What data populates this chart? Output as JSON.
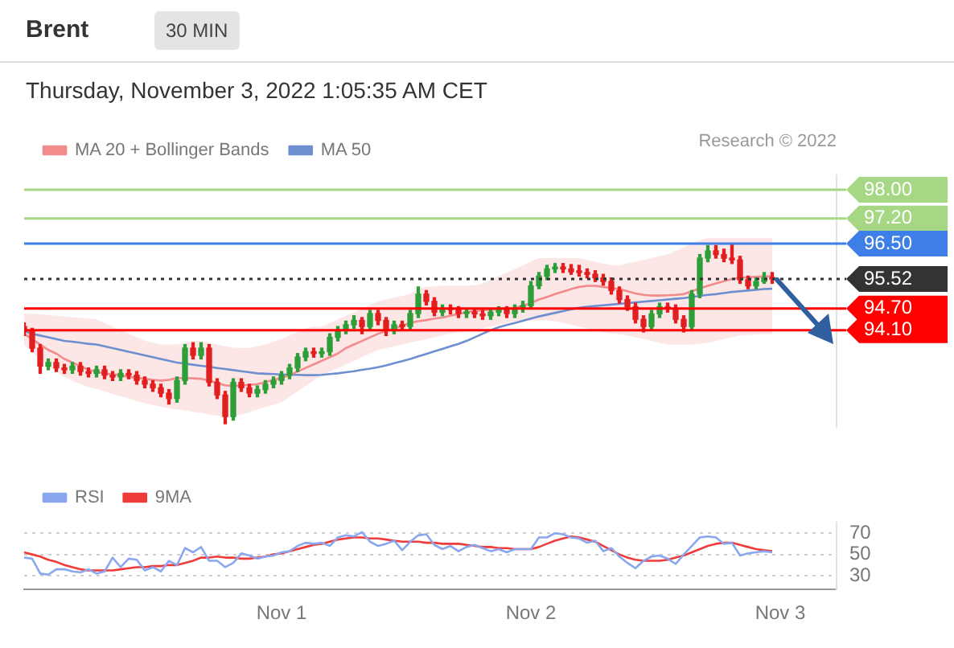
{
  "chart_data": [
    {
      "type": "candlestick",
      "title": "Brent",
      "subtitle": "Thursday, November 3, 2022 1:05:35 AM CET",
      "annotations": [
        "30 MIN",
        "Research © 2022"
      ],
      "legend": "top left",
      "tick_labels": "y",
      "ylim": [
        91.4,
        98.4
      ],
      "yticks": [
        {
          "value": 98.0,
          "label": "98.00"
        },
        {
          "value": 97.2,
          "label": "97.20"
        },
        {
          "value": 96.5,
          "label": "96.50"
        },
        95.52,
        {
          "value": 94.7,
          "label": "94.70"
        },
        {
          "value": 94.1,
          "label": "94.10"
        }
      ],
      "categories": [
        null,
        null,
        null,
        null,
        null,
        null,
        null,
        null,
        null,
        null,
        null,
        null,
        null,
        null,
        null,
        null,
        null,
        null,
        null,
        null,
        null,
        null,
        null,
        null,
        null,
        null,
        null,
        null,
        null,
        null,
        null,
        null,
        null,
        null,
        null,
        null,
        null,
        null,
        null,
        null,
        null,
        null,
        null,
        null,
        null,
        null,
        null,
        null,
        null,
        null,
        null,
        null,
        null,
        null,
        null,
        null,
        null,
        null,
        null,
        null,
        null,
        null,
        null,
        null,
        null,
        null,
        null,
        null,
        null,
        null,
        null,
        null,
        null,
        null,
        null,
        null,
        null,
        null,
        null,
        null,
        null,
        null,
        null,
        null,
        null,
        null,
        null,
        null,
        null,
        null,
        null,
        null,
        null,
        null,
        null,
        null,
        null,
        null,
        null,
        null,
        null,
        null
      ],
      "ohlc": [
        [
          94.2,
          94.3,
          93.95,
          94.07
        ],
        [
          94.07,
          94.15,
          93.5,
          93.6
        ],
        [
          93.6,
          93.7,
          92.9,
          93.1
        ],
        [
          93.1,
          93.3,
          93.0,
          93.2
        ],
        [
          93.2,
          93.3,
          92.95,
          93.05
        ],
        [
          93.05,
          93.15,
          92.9,
          93.0
        ],
        [
          93.0,
          93.2,
          92.9,
          93.1
        ],
        [
          93.1,
          93.2,
          92.85,
          92.95
        ],
        [
          92.95,
          93.05,
          92.8,
          92.9
        ],
        [
          92.9,
          93.1,
          92.8,
          93.0
        ],
        [
          93.0,
          93.1,
          92.75,
          92.85
        ],
        [
          92.85,
          92.95,
          92.7,
          92.8
        ],
        [
          92.8,
          93.0,
          92.7,
          92.9
        ],
        [
          92.9,
          93.0,
          92.75,
          92.85
        ],
        [
          92.85,
          92.95,
          92.6,
          92.7
        ],
        [
          92.7,
          92.8,
          92.5,
          92.6
        ],
        [
          92.6,
          92.7,
          92.4,
          92.5
        ],
        [
          92.5,
          92.6,
          92.25,
          92.35
        ],
        [
          92.35,
          92.45,
          92.05,
          92.2
        ],
        [
          92.2,
          92.8,
          92.1,
          92.7
        ],
        [
          92.7,
          93.7,
          92.6,
          93.6
        ],
        [
          93.6,
          93.75,
          93.3,
          93.4
        ],
        [
          93.4,
          93.75,
          93.3,
          93.6
        ],
        [
          93.6,
          93.7,
          92.55,
          92.65
        ],
        [
          92.65,
          92.75,
          92.2,
          92.3
        ],
        [
          92.3,
          92.4,
          91.5,
          91.7
        ],
        [
          91.7,
          92.75,
          91.6,
          92.65
        ],
        [
          92.65,
          92.75,
          92.4,
          92.5
        ],
        [
          92.5,
          92.6,
          92.25,
          92.35
        ],
        [
          92.35,
          92.55,
          92.25,
          92.45
        ],
        [
          92.45,
          92.7,
          92.35,
          92.6
        ],
        [
          92.6,
          92.8,
          92.5,
          92.7
        ],
        [
          92.7,
          92.95,
          92.6,
          92.85
        ],
        [
          92.85,
          93.15,
          92.75,
          93.05
        ],
        [
          93.05,
          93.45,
          92.95,
          93.35
        ],
        [
          93.35,
          93.6,
          93.25,
          93.5
        ],
        [
          93.5,
          93.6,
          93.35,
          93.45
        ],
        [
          93.45,
          93.6,
          93.35,
          93.5
        ],
        [
          93.5,
          94.0,
          93.4,
          93.9
        ],
        [
          93.9,
          94.2,
          93.8,
          94.1
        ],
        [
          94.1,
          94.35,
          94.0,
          94.25
        ],
        [
          94.25,
          94.5,
          94.15,
          94.37
        ],
        [
          94.37,
          94.45,
          94.0,
          94.2
        ],
        [
          94.2,
          94.65,
          94.1,
          94.56
        ],
        [
          94.56,
          94.65,
          94.25,
          94.37
        ],
        [
          94.37,
          94.45,
          93.95,
          94.1
        ],
        [
          94.1,
          94.35,
          94.0,
          94.25
        ],
        [
          94.25,
          94.35,
          94.1,
          94.2
        ],
        [
          94.2,
          94.65,
          94.1,
          94.56
        ],
        [
          94.56,
          95.3,
          94.45,
          95.1
        ],
        [
          95.1,
          95.2,
          94.8,
          94.9
        ],
        [
          94.9,
          95.0,
          94.5,
          94.6
        ],
        [
          94.6,
          94.8,
          94.5,
          94.7
        ],
        [
          94.7,
          94.8,
          94.55,
          94.67
        ],
        [
          94.67,
          94.75,
          94.45,
          94.56
        ],
        [
          94.56,
          94.7,
          94.45,
          94.6
        ],
        [
          94.6,
          94.7,
          94.45,
          94.55
        ],
        [
          94.55,
          94.65,
          94.4,
          94.5
        ],
        [
          94.5,
          94.7,
          94.4,
          94.6
        ],
        [
          94.6,
          94.75,
          94.5,
          94.67
        ],
        [
          94.67,
          94.75,
          94.45,
          94.56
        ],
        [
          94.56,
          94.8,
          94.45,
          94.7
        ],
        [
          94.7,
          94.9,
          94.6,
          94.78
        ],
        [
          94.78,
          95.45,
          94.7,
          95.33
        ],
        [
          95.33,
          95.7,
          95.25,
          95.6
        ],
        [
          95.6,
          95.9,
          95.5,
          95.8
        ],
        [
          95.8,
          95.95,
          95.7,
          95.85
        ],
        [
          95.85,
          95.95,
          95.7,
          95.8
        ],
        [
          95.8,
          95.92,
          95.65,
          95.72
        ],
        [
          95.72,
          95.9,
          95.6,
          95.7
        ],
        [
          95.7,
          95.8,
          95.55,
          95.65
        ],
        [
          95.65,
          95.75,
          95.45,
          95.55
        ],
        [
          95.55,
          95.65,
          95.35,
          95.45
        ],
        [
          95.45,
          95.55,
          95.1,
          95.2
        ],
        [
          95.2,
          95.3,
          94.85,
          94.95
        ],
        [
          94.95,
          95.05,
          94.65,
          94.75
        ],
        [
          94.75,
          94.85,
          94.3,
          94.4
        ],
        [
          94.4,
          94.5,
          94.05,
          94.2
        ],
        [
          94.2,
          94.65,
          94.1,
          94.55
        ],
        [
          94.55,
          94.85,
          94.45,
          94.75
        ],
        [
          94.75,
          94.85,
          94.6,
          94.7
        ],
        [
          94.7,
          94.8,
          94.3,
          94.4
        ],
        [
          94.4,
          94.5,
          94.05,
          94.2
        ],
        [
          94.2,
          95.2,
          94.1,
          95.1
        ],
        [
          95.1,
          96.2,
          95.0,
          96.1
        ],
        [
          96.1,
          96.45,
          96.0,
          96.3
        ],
        [
          96.3,
          96.45,
          96.1,
          96.2
        ],
        [
          96.2,
          96.35,
          96.0,
          96.1
        ],
        [
          96.1,
          96.5,
          95.95,
          96.05
        ],
        [
          96.05,
          96.15,
          95.4,
          95.5
        ],
        [
          95.5,
          95.6,
          95.25,
          95.33
        ],
        [
          95.33,
          95.55,
          95.25,
          95.45
        ],
        [
          95.45,
          95.7,
          95.4,
          95.55
        ],
        [
          95.55,
          95.7,
          95.4,
          95.52
        ],
        null,
        null,
        null,
        null,
        null,
        null,
        null,
        null
      ],
      "series": [
        {
          "name": "MA 20 + Bollinger Bands",
          "type": "line",
          "color": "#f28b8b",
          "values": [
            94.0,
            93.85,
            93.7,
            93.55,
            93.45,
            93.3,
            93.2,
            93.1,
            93.0,
            92.95,
            92.9,
            92.87,
            92.85,
            92.8,
            92.78,
            92.75,
            92.72,
            92.7,
            92.72,
            92.77,
            92.77,
            92.76,
            92.75,
            92.7,
            92.63,
            92.57,
            92.55,
            92.56,
            92.58,
            92.6,
            92.66,
            92.72,
            92.77,
            92.85,
            92.95,
            93.05,
            93.15,
            93.25,
            93.35,
            93.45,
            93.6,
            93.7,
            93.8,
            93.9,
            94.0,
            94.08,
            94.15,
            94.22,
            94.3,
            94.35,
            94.38,
            94.42,
            94.45,
            94.5,
            94.55,
            94.6,
            94.63,
            94.65,
            94.67,
            94.68,
            94.7,
            94.72,
            94.78,
            94.85,
            94.95,
            95.02,
            95.1,
            95.17,
            95.24,
            95.3,
            95.33,
            95.33,
            95.3,
            95.27,
            95.24,
            95.18,
            95.12,
            95.08,
            95.06,
            95.06,
            95.07,
            95.08,
            95.1,
            95.18,
            95.26,
            95.33,
            95.4,
            95.46,
            95.52,
            95.55,
            95.57,
            95.58,
            95.59,
            95.6,
            null,
            null,
            null,
            null,
            null,
            null,
            null,
            null
          ],
          "upper": [
            94.56,
            94.55,
            94.54,
            94.52,
            94.5,
            94.48,
            94.46,
            94.44,
            94.42,
            94.4,
            94.3,
            94.2,
            94.1,
            94.0,
            93.9,
            93.8,
            93.75,
            93.7,
            93.7,
            93.7,
            93.75,
            93.8,
            93.8,
            93.75,
            93.7,
            93.65,
            93.62,
            93.6,
            93.6,
            93.65,
            93.7,
            93.78,
            93.85,
            93.95,
            94.05,
            94.15,
            94.2,
            94.2,
            94.3,
            94.4,
            94.5,
            94.6,
            94.7,
            94.8,
            94.9,
            94.95,
            95.0,
            95.05,
            95.1,
            95.25,
            95.3,
            95.32,
            95.33,
            95.33,
            95.33,
            95.33,
            95.35,
            95.4,
            95.5,
            95.6,
            95.7,
            95.8,
            95.9,
            96.0,
            96.1,
            96.1,
            96.1,
            96.1,
            96.1,
            96.1,
            96.05,
            96.0,
            95.95,
            95.9,
            95.9,
            95.95,
            96.0,
            96.05,
            96.1,
            96.15,
            96.2,
            96.3,
            96.4,
            96.5,
            96.6,
            96.66,
            96.66,
            96.66,
            96.66,
            96.66,
            96.66,
            96.66,
            96.66,
            96.66,
            null,
            null,
            null,
            null,
            null,
            null,
            null,
            null
          ],
          "lower": [
            93.7,
            93.5,
            93.3,
            93.1,
            92.95,
            92.8,
            92.7,
            92.6,
            92.52,
            92.47,
            92.4,
            92.33,
            92.26,
            92.2,
            92.13,
            92.07,
            92.02,
            91.97,
            91.93,
            91.9,
            91.87,
            91.83,
            91.8,
            91.76,
            91.72,
            91.7,
            91.72,
            91.76,
            91.82,
            91.9,
            91.97,
            92.03,
            92.1,
            92.25,
            92.4,
            92.55,
            92.7,
            92.85,
            92.95,
            93.05,
            93.15,
            93.25,
            93.35,
            93.45,
            93.55,
            93.6,
            93.65,
            93.7,
            93.75,
            93.8,
            93.85,
            93.9,
            93.95,
            94.0,
            94.05,
            94.08,
            94.1,
            94.15,
            94.2,
            94.25,
            94.3,
            94.35,
            94.37,
            94.37,
            94.37,
            94.37,
            94.35,
            94.3,
            94.25,
            94.2,
            94.15,
            94.1,
            94.05,
            94.0,
            93.99,
            93.95,
            93.9,
            93.85,
            93.8,
            93.75,
            93.7,
            93.7,
            93.7,
            93.7,
            93.72,
            93.75,
            93.8,
            93.85,
            93.9,
            93.95,
            93.97,
            93.98,
            93.99,
            93.99,
            null,
            null,
            null,
            null,
            null,
            null,
            null,
            null
          ]
        },
        {
          "name": "MA 50",
          "type": "line",
          "color": "#6d8fd0",
          "values": [
            94.07,
            94.0,
            93.95,
            93.9,
            93.85,
            93.8,
            93.78,
            93.75,
            93.72,
            93.7,
            93.65,
            93.6,
            93.55,
            93.5,
            93.45,
            93.4,
            93.35,
            93.3,
            93.25,
            93.2,
            93.17,
            93.14,
            93.11,
            93.08,
            93.05,
            93.02,
            92.99,
            92.96,
            92.93,
            92.9,
            92.89,
            92.88,
            92.87,
            92.86,
            92.86,
            92.85,
            92.85,
            92.86,
            92.88,
            92.9,
            92.93,
            92.96,
            93.0,
            93.03,
            93.07,
            93.12,
            93.18,
            93.24,
            93.3,
            93.37,
            93.44,
            93.51,
            93.58,
            93.65,
            93.72,
            93.8,
            93.9,
            94.0,
            94.1,
            94.18,
            94.24,
            94.3,
            94.36,
            94.42,
            94.48,
            94.53,
            94.58,
            94.63,
            94.68,
            94.72,
            94.75,
            94.77,
            94.79,
            94.81,
            94.83,
            94.85,
            94.87,
            94.89,
            94.91,
            94.93,
            94.95,
            94.97,
            94.99,
            95.02,
            95.05,
            95.08,
            95.1,
            95.13,
            95.16,
            95.18,
            95.2,
            95.22,
            95.24,
            95.25,
            null,
            null,
            null,
            null,
            null,
            null,
            null,
            null
          ]
        }
      ],
      "ref_lines": [
        {
          "axis": "y",
          "value": 98.0,
          "color": "#a6d785"
        },
        {
          "axis": "y",
          "value": 97.2,
          "color": "#a6d785"
        },
        {
          "axis": "y",
          "value": 96.5,
          "color": "#3d7fe6"
        },
        {
          "axis": "y",
          "value": 95.52,
          "color": "#333333",
          "line_style": "dotted"
        },
        {
          "axis": "y",
          "value": 94.7,
          "color": "#ff0000"
        },
        {
          "axis": "y",
          "value": 94.1,
          "color": "#ff0000"
        }
      ]
    },
    {
      "type": "line",
      "legend": "top left",
      "grid": "y",
      "ylim": [
        17,
        80
      ],
      "yticks": [
        30,
        50,
        70
      ],
      "categories": [
        null,
        null,
        null,
        null,
        null,
        null,
        null,
        null,
        null,
        null,
        null,
        null,
        null,
        null,
        null,
        null,
        null,
        null,
        null,
        null,
        null,
        null,
        null,
        null,
        null,
        null,
        null,
        null,
        null,
        null,
        null,
        null,
        "Nov 1",
        null,
        null,
        null,
        null,
        null,
        null,
        null,
        null,
        null,
        null,
        null,
        null,
        null,
        null,
        null,
        null,
        null,
        null,
        null,
        null,
        null,
        null,
        null,
        null,
        null,
        null,
        null,
        null,
        null,
        null,
        "Nov 2",
        null,
        null,
        null,
        null,
        null,
        null,
        null,
        null,
        null,
        null,
        null,
        null,
        null,
        null,
        null,
        null,
        null,
        null,
        null,
        null,
        null,
        null,
        null,
        null,
        null,
        null,
        null,
        null,
        null,
        null,
        "Nov 3",
        null,
        null,
        null,
        null,
        null,
        null,
        null
      ],
      "series": [
        {
          "name": "RSI",
          "color": "#8aa6ef",
          "values": [
            47,
            46,
            32,
            31,
            36,
            36,
            34,
            33,
            36,
            32,
            34,
            47,
            38,
            46,
            45,
            35,
            38,
            34,
            44,
            40,
            56,
            52,
            57,
            44,
            44,
            38,
            42,
            51,
            49,
            46,
            48,
            49,
            52,
            53,
            58,
            61,
            60,
            61,
            58,
            66,
            68,
            67,
            71,
            62,
            58,
            60,
            63,
            54,
            62,
            68,
            69,
            59,
            55,
            58,
            53,
            57,
            59,
            56,
            53,
            55,
            52,
            55,
            55,
            55,
            66,
            66,
            70,
            69,
            66,
            65,
            61,
            63,
            53,
            56,
            48,
            42,
            37,
            44,
            48,
            49,
            46,
            41,
            50,
            58,
            66,
            67,
            66,
            60,
            61,
            49,
            51,
            52,
            53,
            52,
            null,
            null,
            null,
            null,
            null,
            null,
            null,
            null
          ]
        },
        {
          "name": "9MA",
          "color": "#f03b3b",
          "values": [
            52,
            50,
            48,
            45,
            43,
            40,
            38,
            36,
            35,
            35,
            35,
            35,
            36,
            37,
            38,
            38,
            39,
            39,
            40,
            40,
            42,
            44,
            47,
            47,
            48,
            47,
            47,
            46,
            46,
            47,
            48,
            50,
            51,
            53,
            55,
            57,
            59,
            60,
            62,
            64,
            65,
            66,
            66,
            65,
            65,
            64,
            63,
            62,
            62,
            62,
            61,
            61,
            60,
            60,
            60,
            59,
            58,
            57,
            57,
            56,
            56,
            55,
            55,
            55,
            57,
            60,
            63,
            65,
            67,
            66,
            64,
            62,
            58,
            54,
            50,
            47,
            45,
            44,
            44,
            44,
            45,
            47,
            49,
            52,
            55,
            58,
            60,
            61,
            61,
            59,
            57,
            55,
            54,
            53,
            null,
            null,
            null,
            null,
            null,
            null,
            null,
            null
          ]
        }
      ]
    }
  ]
}
